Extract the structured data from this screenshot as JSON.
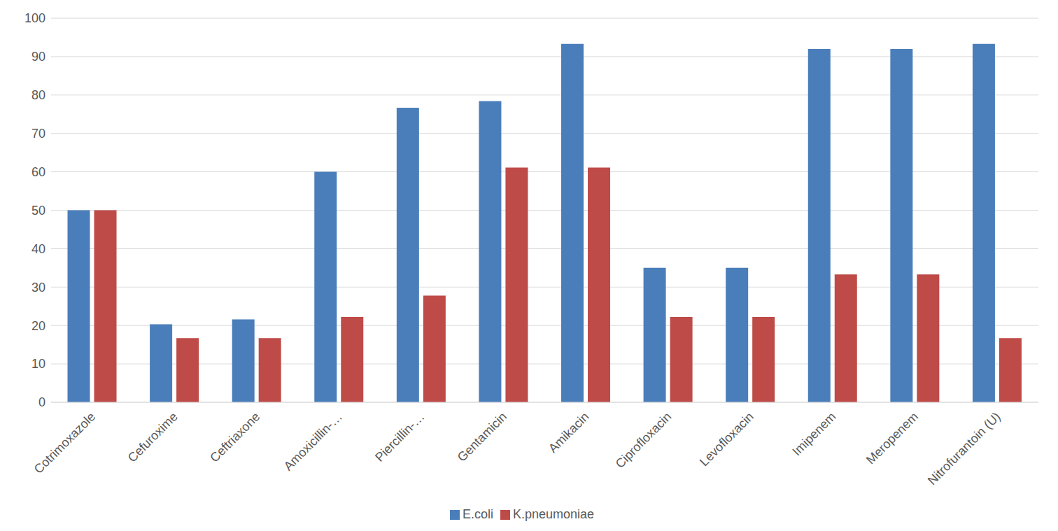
{
  "chart_data": {
    "type": "bar",
    "categories": [
      "Cotrimoxazole",
      "Cefuroxime",
      "Ceftriaxone",
      "Amoxicillin-…",
      "Piercillin-…",
      "Gentamicin",
      "Amikacin",
      "Ciprofloxacin",
      "Levofloxacin",
      "Imipenem",
      "Meropenem",
      "Nitrofurantoin (U)"
    ],
    "series": [
      {
        "name": "E.coli",
        "color": "#4a7ebb",
        "values": [
          50,
          20.3,
          21.6,
          60,
          76.7,
          78.4,
          93.3,
          35,
          35,
          92,
          92,
          93.3
        ]
      },
      {
        "name": "K.pneumoniae",
        "color": "#be4b48",
        "values": [
          50,
          16.7,
          16.7,
          22.2,
          27.8,
          61.1,
          61.1,
          22.2,
          22.2,
          33.3,
          33.3,
          16.7
        ]
      }
    ],
    "ylim": [
      0,
      100
    ],
    "yticks": [
      0,
      10,
      20,
      30,
      40,
      50,
      60,
      70,
      80,
      90,
      100
    ],
    "grid": true,
    "legend": "bottom"
  }
}
